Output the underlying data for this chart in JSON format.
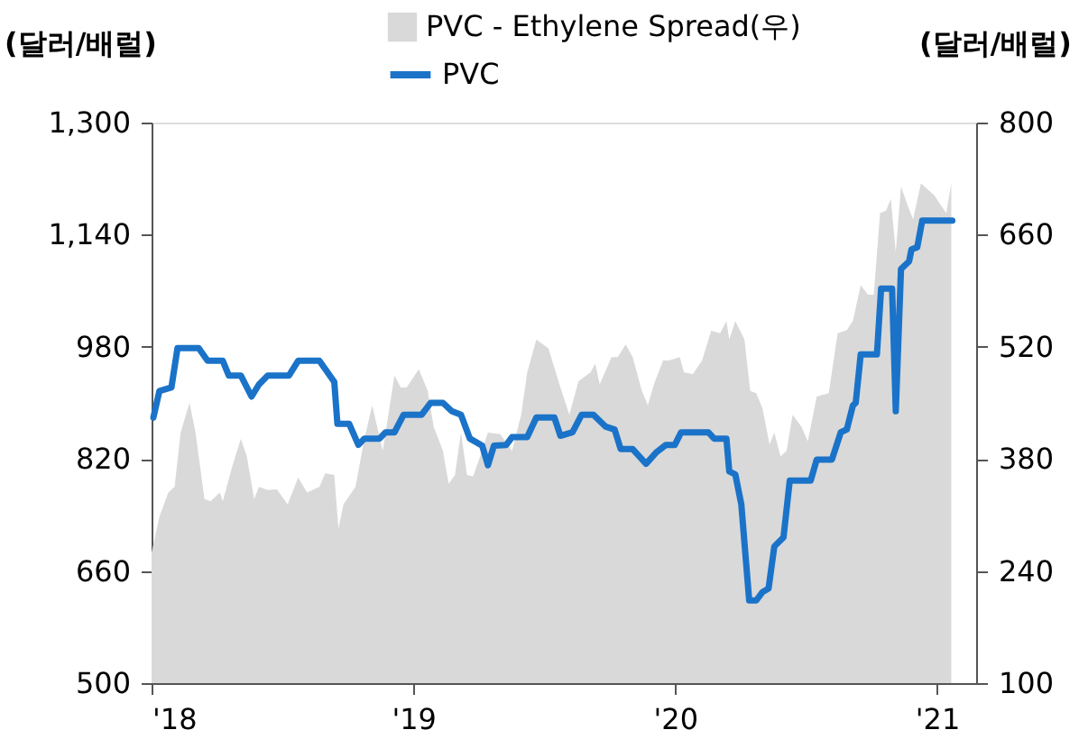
{
  "chart_data": {
    "type": "line",
    "ylabel": "(달러/배럴)",
    "y2label": "(달러/배럴)",
    "xlim": [
      2018,
      2021.15
    ],
    "xticks": [
      {
        "value": 2018,
        "label": "'18"
      },
      {
        "value": 2019,
        "label": "'19"
      },
      {
        "value": 2020,
        "label": "'20"
      },
      {
        "value": 2021,
        "label": "'21"
      }
    ],
    "ylim": [
      500,
      1300
    ],
    "yticks": [
      500,
      660,
      820,
      980,
      {
        "value": 1140,
        "label": "1,140"
      },
      {
        "value": 1300,
        "label": "1,300"
      }
    ],
    "y2lim": [
      100,
      800
    ],
    "y2ticks": [
      100,
      240,
      380,
      520,
      660,
      800
    ],
    "grid": false,
    "legend": "top",
    "series": [
      {
        "name": "PVC - Ethylene Spread(우)",
        "type": "area",
        "axis": "y2",
        "color": "#d9d9d9",
        "x": [
          2018.0,
          2018.03,
          2018.064,
          2018.088,
          2018.111,
          2018.145,
          2018.168,
          2018.202,
          2018.226,
          2018.261,
          2018.272,
          2018.306,
          2018.341,
          2018.364,
          2018.392,
          2018.41,
          2018.444,
          2018.479,
          2018.52,
          2018.56,
          2018.594,
          2018.641,
          2018.663,
          2018.698,
          2018.714,
          2018.733,
          2018.779,
          2018.813,
          2018.843,
          2018.883,
          2018.928,
          2018.952,
          2018.974,
          2019.021,
          2019.055,
          2019.078,
          2019.113,
          2019.135,
          2019.159,
          2019.182,
          2019.205,
          2019.228,
          2019.251,
          2019.285,
          2019.332,
          2019.377,
          2019.412,
          2019.435,
          2019.47,
          2019.516,
          2019.562,
          2019.596,
          2019.631,
          2019.677,
          2019.695,
          2019.712,
          2019.757,
          2019.781,
          2019.811,
          2019.838,
          2019.873,
          2019.896,
          2019.919,
          2019.954,
          2019.977,
          2020.018,
          2020.034,
          2020.068,
          2020.103,
          2020.138,
          2020.172,
          2020.196,
          2020.207,
          2020.23,
          2020.265,
          2020.287,
          2020.31,
          2020.334,
          2020.361,
          2020.379,
          2020.403,
          2020.426,
          2020.449,
          2020.483,
          2020.507,
          2020.541,
          2020.587,
          2020.621,
          2020.656,
          2020.679,
          2020.709,
          2020.737,
          2020.759,
          2020.783,
          2020.806,
          2020.824,
          2020.843,
          2020.863,
          2020.887,
          2020.909,
          2020.939,
          2020.99,
          2021.036,
          2021.055
        ],
        "values": [
          263,
          308,
          338,
          345,
          413,
          450,
          413,
          330,
          327,
          338,
          327,
          368,
          405,
          383,
          330,
          345,
          341,
          342,
          323,
          357,
          338,
          345,
          362,
          360,
          293,
          323,
          345,
          405,
          447,
          390,
          484,
          469,
          469,
          492,
          465,
          420,
          390,
          349,
          360,
          413,
          360,
          358,
          379,
          413,
          411,
          390,
          435,
          488,
          529,
          518,
          469,
          435,
          477,
          488,
          499,
          473,
          507,
          507,
          523,
          507,
          465,
          447,
          473,
          503,
          503,
          507,
          488,
          486,
          503,
          540,
          537,
          552,
          529,
          552,
          529,
          465,
          462,
          443,
          398,
          413,
          383,
          390,
          435,
          420,
          402,
          458,
          462,
          537,
          541,
          552,
          597,
          585,
          585,
          687,
          690,
          705,
          638,
          720,
          698,
          679,
          724,
          709,
          687,
          724
        ]
      },
      {
        "name": "PVC",
        "type": "line",
        "axis": "y",
        "color": "#1a73c8",
        "x": [
          2018.007,
          2018.03,
          2018.076,
          2018.099,
          2018.18,
          2018.214,
          2018.272,
          2018.295,
          2018.341,
          2018.382,
          2018.41,
          2018.444,
          2018.525,
          2018.56,
          2018.641,
          2018.698,
          2018.71,
          2018.755,
          2018.79,
          2018.813,
          2018.871,
          2018.894,
          2018.928,
          2018.963,
          2019.032,
          2019.066,
          2019.113,
          2019.147,
          2019.182,
          2019.216,
          2019.263,
          2019.285,
          2019.308,
          2019.355,
          2019.377,
          2019.435,
          2019.47,
          2019.539,
          2019.562,
          2019.608,
          2019.643,
          2019.688,
          2019.735,
          2019.769,
          2019.792,
          2019.838,
          2019.889,
          2019.93,
          2019.965,
          2019.999,
          2020.023,
          2020.127,
          2020.149,
          2020.196,
          2020.207,
          2020.23,
          2020.253,
          2020.283,
          2020.31,
          2020.334,
          2020.357,
          2020.379,
          2020.414,
          2020.438,
          2020.518,
          2020.541,
          2020.599,
          2020.633,
          2020.656,
          2020.679,
          2020.69,
          2020.709,
          2020.771,
          2020.787,
          2020.829,
          2020.843,
          2020.863,
          2020.894,
          2020.903,
          2020.925,
          2020.944,
          2021.059
        ],
        "values": [
          879,
          917,
          922,
          978,
          978,
          960,
          960,
          939,
          939,
          909,
          926,
          939,
          939,
          960,
          960,
          930,
          870,
          870,
          840,
          849,
          849,
          858,
          858,
          883,
          883,
          900,
          900,
          888,
          883,
          849,
          839,
          811,
          839,
          840,
          851,
          851,
          879,
          879,
          853,
          858,
          883,
          883,
          866,
          862,
          834,
          834,
          813,
          830,
          840,
          840,
          858,
          858,
          849,
          849,
          802,
          798,
          755,
          618,
          618,
          630,
          635,
          695,
          708,
          789,
          789,
          819,
          819,
          858,
          862,
          896,
          900,
          969,
          969,
          1063,
          1063,
          888,
          1091,
          1102,
          1119,
          1122,
          1160,
          1160
        ]
      }
    ]
  }
}
